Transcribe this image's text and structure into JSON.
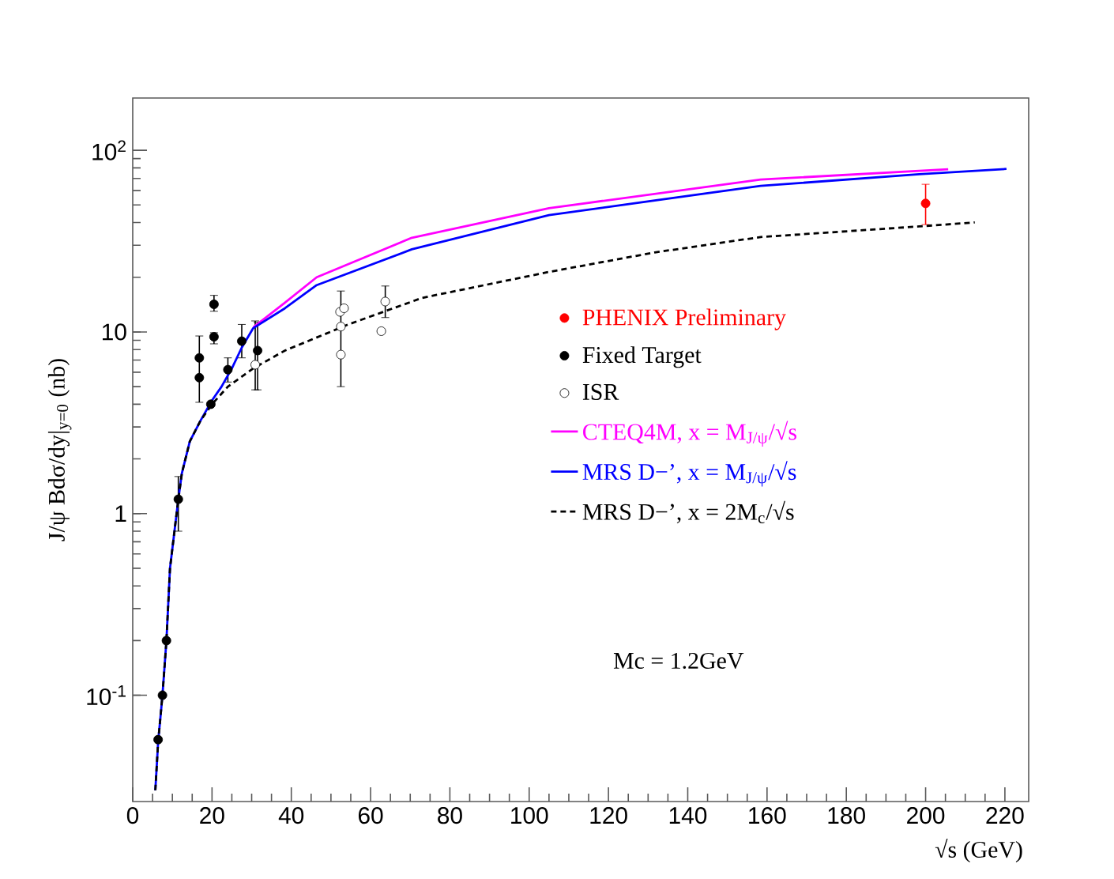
{
  "chart_data": {
    "type": "scatter",
    "xlabel": "√s (GeV)",
    "ylabel": "J/ψ  Bdσ/dy|$_{y=0}$  (nb)",
    "xlim": [
      0,
      226
    ],
    "ylim": [
      0.026,
      194
    ],
    "log": "y",
    "xticks": [
      0,
      20,
      40,
      60,
      80,
      100,
      120,
      140,
      160,
      180,
      200,
      220
    ],
    "yticks": [
      {
        "value": 0.1,
        "label": "10$^{-1}$"
      },
      1,
      10,
      {
        "value": 100,
        "label": "10$^{2}$"
      }
    ],
    "legend": "right",
    "grid": false,
    "annotations": [
      "Mc = 1.2GeV"
    ],
    "series": [
      {
        "name": "PHENIX Preliminary",
        "marker": "circle",
        "color": "#ff0000",
        "x": [
          200
        ],
        "values": [
          51
        ],
        "errors": [
          [
            39,
            65
          ]
        ]
      },
      {
        "name": "Fixed Target",
        "marker": "circle",
        "color": "#000000",
        "x": [
          6.4,
          7.5,
          8.5,
          11.5,
          16.8,
          16.8,
          19.7,
          20.5,
          20.5,
          24,
          27.5,
          31.5
        ],
        "values": [
          0.057,
          0.1,
          0.2,
          1.2,
          7.2,
          5.6,
          4.0,
          14.2,
          9.4,
          6.2,
          8.9,
          7.9
        ],
        "errors": [
          null,
          null,
          null,
          [
            0.8,
            1.6
          ],
          [
            4.1,
            9.5
          ],
          null,
          null,
          [
            13,
            15.9
          ],
          [
            8.6,
            9.9
          ],
          [
            5.3,
            7.2
          ],
          [
            7.2,
            11
          ],
          [
            4.8,
            11.3
          ]
        ]
      },
      {
        "name": "ISR",
        "marker": "circle",
        "color": "#ffffff",
        "x": [
          30.9,
          52.3,
          53.3,
          52.5,
          52.5,
          62.7,
          63.7
        ],
        "values": [
          6.6,
          12.9,
          13.5,
          10.7,
          7.5,
          10.1,
          14.7
        ],
        "errors": [
          [
            4.8,
            11.5
          ],
          null,
          null,
          null,
          [
            5.0,
            16.8
          ],
          null,
          [
            12,
            17.9
          ]
        ]
      },
      {
        "name": "CTEQ4M,  x = M$_{J/ψ}$/√s",
        "type": "line",
        "marker": "none",
        "line_style": "solid",
        "color": "#ff00ff",
        "x": [
          30.4,
          38.4,
          46.4,
          70.4,
          105,
          158.4,
          205.7
        ],
        "values": [
          10.6,
          14.5,
          20,
          33,
          48,
          69,
          78.6
        ]
      },
      {
        "name": "MRS  D−’,  x = M$_{J/ψ}$/√s",
        "type": "line",
        "marker": "none",
        "line_style": "solid",
        "color": "#0000ff",
        "x": [
          5.7,
          6.4,
          7.5,
          8.5,
          9.4,
          11.5,
          12.4,
          14.4,
          17.1,
          20,
          22.4,
          25,
          27.5,
          30.4,
          38.4,
          46.4,
          70.4,
          105,
          158.4,
          198.4,
          220.4
        ],
        "values": [
          0.03,
          0.055,
          0.1,
          0.2,
          0.5,
          1.2,
          1.67,
          2.5,
          3.25,
          4.2,
          5.0,
          6.3,
          8.2,
          10.5,
          13.5,
          18.1,
          28.5,
          44,
          63.7,
          73.8,
          79
        ]
      },
      {
        "name": "MRS  D−’,  x = 2M$_{c}$/√s",
        "type": "line",
        "marker": "none",
        "line_style": "dashed",
        "color": "#000000",
        "x": [
          5.7,
          6.4,
          7.5,
          8.5,
          9.4,
          11.5,
          12.4,
          14.4,
          17.1,
          20,
          24,
          30.4,
          38.4,
          54.4,
          73,
          105,
          131.7,
          158.4,
          198.4,
          212.4
        ],
        "values": [
          0.03,
          0.055,
          0.1,
          0.2,
          0.5,
          1.2,
          1.67,
          2.5,
          3.25,
          4.0,
          5.0,
          6.3,
          7.9,
          11,
          15.4,
          21.4,
          27.4,
          33.3,
          38.1,
          40.1
        ]
      }
    ]
  }
}
